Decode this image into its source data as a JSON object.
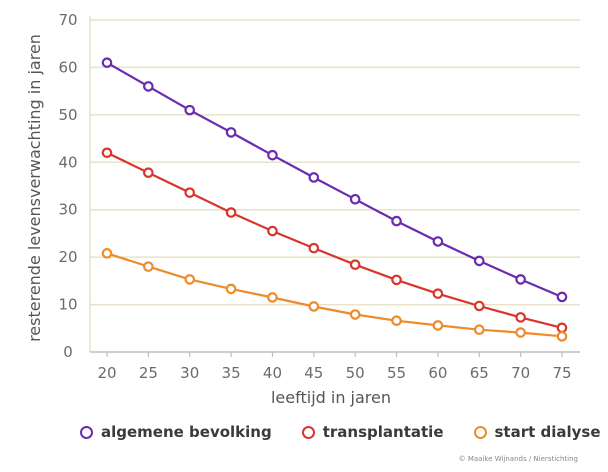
{
  "chart_data": {
    "type": "line",
    "xlabel": "leeftijd in jaren",
    "ylabel": "resterende levensverwachting  in jaren",
    "x": [
      20,
      25,
      30,
      35,
      40,
      45,
      50,
      55,
      60,
      65,
      70,
      75
    ],
    "xlim": [
      20,
      75
    ],
    "ylim": [
      0,
      70
    ],
    "yticks": [
      0,
      10,
      20,
      30,
      40,
      50,
      60,
      70
    ],
    "grid": true,
    "legend_position": "bottom",
    "series": [
      {
        "name": "algemene bevolking",
        "color": "#6a2bb0",
        "values": [
          61,
          56,
          51,
          46.3,
          41.5,
          36.8,
          32.2,
          27.6,
          23.3,
          19.2,
          15.3,
          11.6
        ]
      },
      {
        "name": "transplantatie",
        "color": "#d8362b",
        "values": [
          42,
          37.8,
          33.6,
          29.4,
          25.5,
          21.9,
          18.4,
          15.2,
          12.3,
          9.7,
          7.3,
          5.1
        ]
      },
      {
        "name": "start dialyse",
        "color": "#ee8b2b",
        "values": [
          20.8,
          18,
          15.3,
          13.3,
          11.5,
          9.6,
          7.9,
          6.6,
          5.6,
          4.7,
          4.1,
          3.3
        ]
      }
    ]
  },
  "credit": "© Maaike Wijnands / Nierstichting"
}
